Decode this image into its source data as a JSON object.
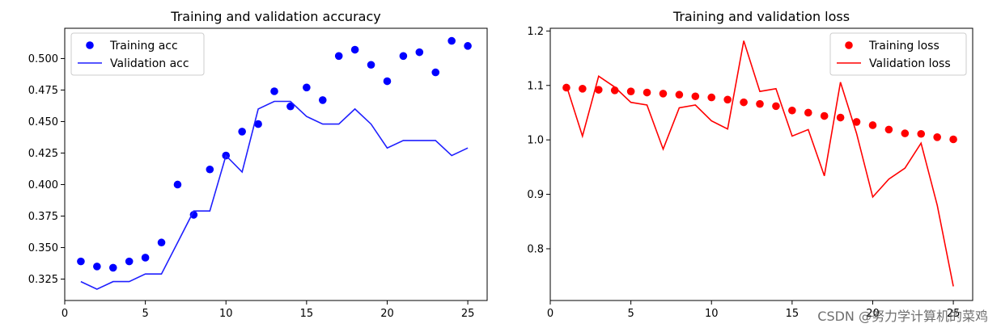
{
  "chart_data": [
    {
      "type": "line",
      "title": "Training and validation accuracy",
      "xlabel": "",
      "ylabel": "",
      "xlim": [
        0,
        26.2
      ],
      "ylim": [
        0.308,
        0.524
      ],
      "xticks": [
        0,
        5,
        10,
        15,
        20,
        25
      ],
      "yticks": [
        0.325,
        0.35,
        0.375,
        0.4,
        0.425,
        0.45,
        0.475,
        0.5
      ],
      "ytick_labels": [
        "0.325",
        "0.350",
        "0.375",
        "0.400",
        "0.425",
        "0.450",
        "0.475",
        "0.500"
      ],
      "grid": false,
      "legend": "upper-left",
      "series": [
        {
          "name": "Training acc",
          "style": "points",
          "color": "#0000ff",
          "x": [
            1,
            2,
            3,
            4,
            5,
            6,
            7,
            8,
            9,
            10,
            11,
            12,
            13,
            14,
            15,
            16,
            17,
            18,
            19,
            20,
            21,
            22,
            23,
            24,
            25
          ],
          "y": [
            0.339,
            0.335,
            0.334,
            0.339,
            0.342,
            0.354,
            0.4,
            0.376,
            0.412,
            0.423,
            0.442,
            0.448,
            0.474,
            0.462,
            0.477,
            0.467,
            0.502,
            0.507,
            0.495,
            0.482,
            0.502,
            0.505,
            0.489,
            0.514,
            0.51
          ]
        },
        {
          "name": "Validation acc",
          "style": "line",
          "color": "#1f1fff",
          "x": [
            1,
            2,
            3,
            4,
            5,
            6,
            7,
            8,
            9,
            10,
            11,
            12,
            13,
            14,
            15,
            16,
            17,
            18,
            19,
            20,
            21,
            22,
            23,
            24,
            25
          ],
          "y": [
            0.323,
            0.317,
            0.323,
            0.323,
            0.329,
            0.329,
            0.354,
            0.379,
            0.379,
            0.423,
            0.41,
            0.46,
            0.466,
            0.466,
            0.454,
            0.448,
            0.448,
            0.46,
            0.448,
            0.429,
            0.435,
            0.435,
            0.435,
            0.423,
            0.429
          ]
        }
      ]
    },
    {
      "type": "line",
      "title": "Training and validation loss",
      "xlabel": "",
      "ylabel": "",
      "xlim": [
        0,
        26.2
      ],
      "ylim": [
        0.705,
        1.205
      ],
      "xticks": [
        0,
        5,
        10,
        15,
        20,
        25
      ],
      "yticks": [
        0.8,
        0.9,
        1.0,
        1.1,
        1.2
      ],
      "ytick_labels": [
        "0.8",
        "0.9",
        "1.0",
        "1.1",
        "1.2"
      ],
      "grid": false,
      "legend": "upper-right",
      "series": [
        {
          "name": "Training loss",
          "style": "points",
          "color": "#ff0000",
          "x": [
            1,
            2,
            3,
            4,
            5,
            6,
            7,
            8,
            9,
            10,
            11,
            12,
            13,
            14,
            15,
            16,
            17,
            18,
            19,
            20,
            21,
            22,
            23,
            24,
            25
          ],
          "y": [
            1.096,
            1.094,
            1.092,
            1.091,
            1.089,
            1.087,
            1.085,
            1.083,
            1.08,
            1.078,
            1.074,
            1.069,
            1.066,
            1.062,
            1.054,
            1.05,
            1.044,
            1.041,
            1.033,
            1.027,
            1.019,
            1.012,
            1.011,
            1.005,
            1.001
          ]
        },
        {
          "name": "Validation loss",
          "style": "line",
          "color": "#ff0000",
          "x": [
            1,
            2,
            3,
            4,
            5,
            6,
            7,
            8,
            9,
            10,
            11,
            12,
            13,
            14,
            15,
            16,
            17,
            18,
            19,
            20,
            21,
            22,
            23,
            24,
            25
          ],
          "y": [
            1.1,
            1.007,
            1.117,
            1.097,
            1.069,
            1.064,
            0.983,
            1.059,
            1.064,
            1.035,
            1.02,
            1.182,
            1.089,
            1.094,
            1.007,
            1.019,
            0.934,
            1.106,
            1.012,
            0.895,
            0.928,
            0.948,
            0.994,
            0.88,
            0.731
          ]
        }
      ]
    }
  ],
  "watermark": "CSDN @努力学计算机的菜鸡"
}
